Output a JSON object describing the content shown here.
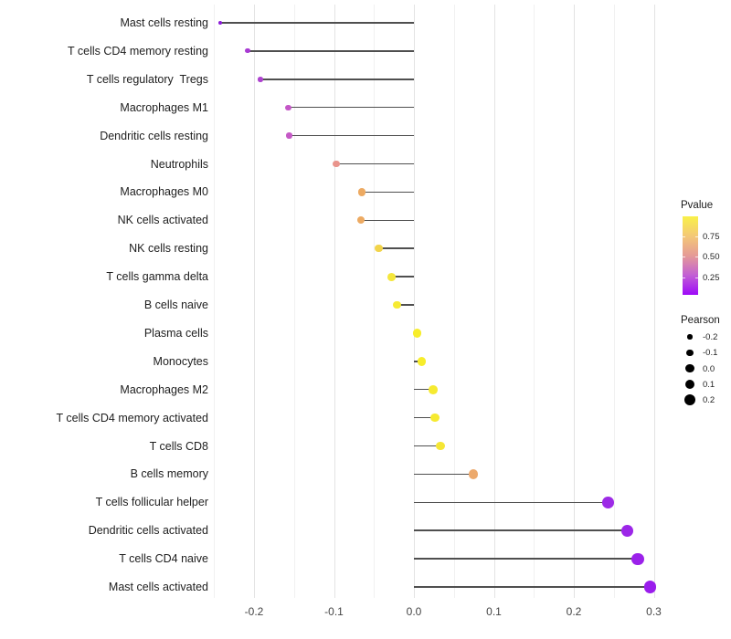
{
  "chart_data": {
    "type": "lollipop",
    "orientation": "horizontal",
    "title": "",
    "xlabel": "",
    "ylabel": "",
    "x_ticks": [
      "-0.2",
      "-0.1",
      "0.0",
      "0.1",
      "0.2",
      "0.3"
    ],
    "x_tick_values": [
      -0.2,
      -0.1,
      0.0,
      0.1,
      0.2,
      0.3
    ],
    "xlim": [
      -0.265,
      0.322
    ],
    "grid": "vertical only, major every 0.1 with minor every 0.05",
    "stick_color": "#4f4f4f",
    "points": [
      {
        "label": "Mast cells resting",
        "pearson": -0.242,
        "color": "#8B1BD8"
      },
      {
        "label": "T cells CD4 memory resting",
        "pearson": -0.208,
        "color": "#A83AD3"
      },
      {
        "label": "T cells regulatory  Tregs",
        "pearson": -0.192,
        "color": "#AD42CF"
      },
      {
        "label": "Macrophages M1",
        "pearson": -0.157,
        "color": "#C457C7"
      },
      {
        "label": "Dendritic cells resting",
        "pearson": -0.156,
        "color": "#C559C6"
      },
      {
        "label": "Neutrophils",
        "pearson": -0.097,
        "color": "#E9948C"
      },
      {
        "label": "Macrophages M0",
        "pearson": -0.065,
        "color": "#EDAA62"
      },
      {
        "label": "NK cells activated",
        "pearson": -0.066,
        "color": "#EDAA62"
      },
      {
        "label": "NK cells resting",
        "pearson": -0.044,
        "color": "#F2D44B"
      },
      {
        "label": "T cells gamma delta",
        "pearson": -0.028,
        "color": "#F5E73C"
      },
      {
        "label": "B cells naive",
        "pearson": -0.021,
        "color": "#F6EA33"
      },
      {
        "label": "Plasma cells",
        "pearson": 0.004,
        "color": "#F7ED2B"
      },
      {
        "label": "Monocytes",
        "pearson": 0.01,
        "color": "#F7ED2B"
      },
      {
        "label": "Macrophages M2",
        "pearson": 0.024,
        "color": "#F6EA30"
      },
      {
        "label": "T cells CD4 memory activated",
        "pearson": 0.026,
        "color": "#F6EA30"
      },
      {
        "label": "T cells CD8",
        "pearson": 0.033,
        "color": "#F5E634"
      },
      {
        "label": "B cells memory",
        "pearson": 0.074,
        "color": "#ECA96C"
      },
      {
        "label": "T cells follicular helper",
        "pearson": 0.243,
        "color": "#9D2BE6"
      },
      {
        "label": "Dendritic cells activated",
        "pearson": 0.267,
        "color": "#9C26E8"
      },
      {
        "label": "T cells CD4 naive",
        "pearson": 0.28,
        "color": "#9B21EA"
      },
      {
        "label": "Mast cells activated",
        "pearson": 0.295,
        "color": "#9A1DEC"
      }
    ],
    "legend": {
      "pvalue": {
        "title": "Pvalue",
        "ticks": [
          "0.75",
          "0.50",
          "0.25"
        ],
        "gradient_top_to_bottom": [
          "#F9F148",
          "#F4C876",
          "#E59B97",
          "#C25FD4",
          "#9E0AF8"
        ]
      },
      "pearson": {
        "title": "Pearson",
        "labels": [
          "-0.2",
          "-0.1",
          "0.0",
          "0.1",
          "0.2"
        ],
        "values": [
          -0.2,
          -0.1,
          0.0,
          0.1,
          0.2
        ],
        "dot_color": "#000000"
      }
    }
  }
}
